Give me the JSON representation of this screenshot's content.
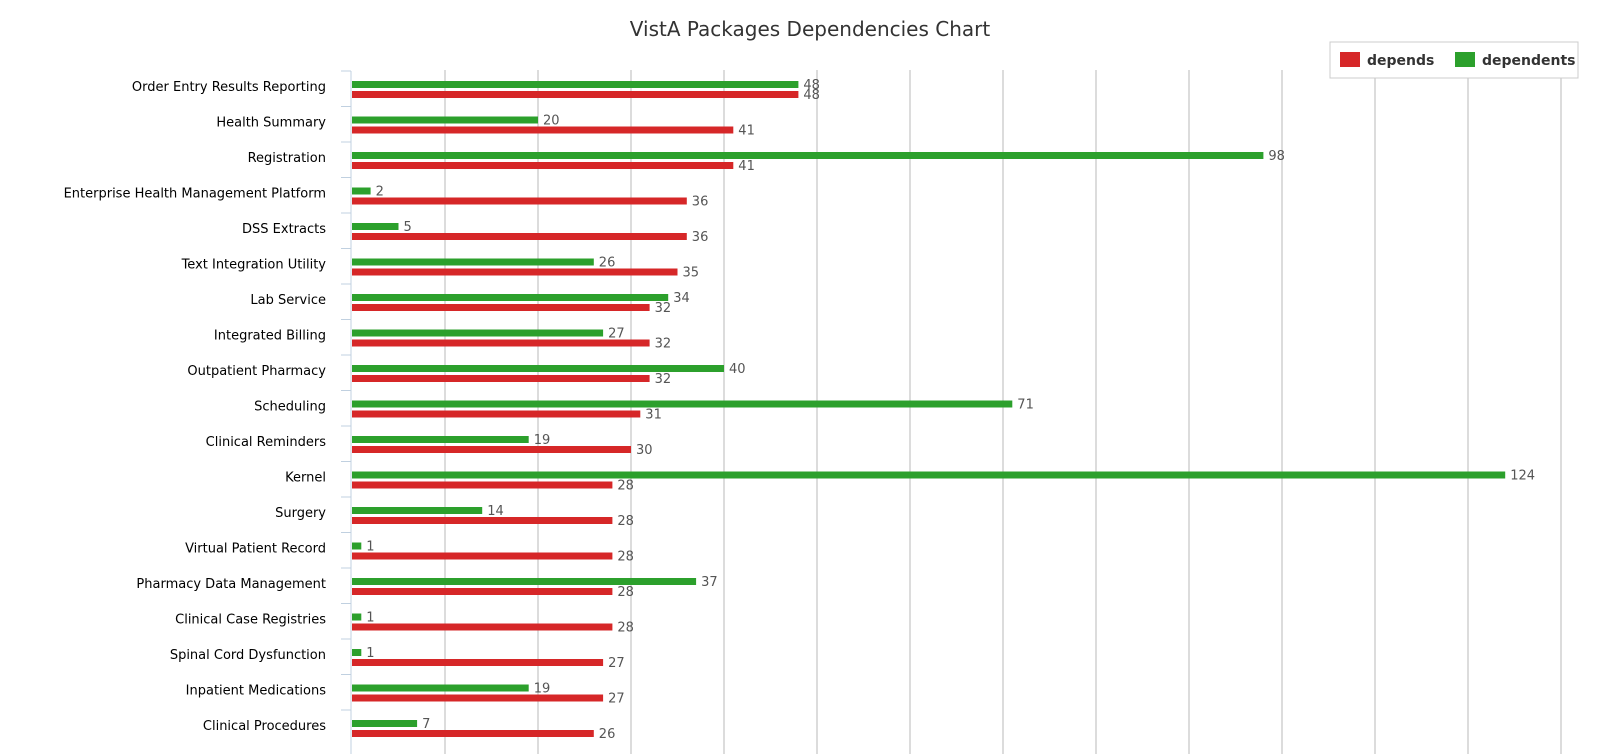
{
  "chart_data": {
    "type": "bar",
    "orientation": "horizontal",
    "title": "VistA Packages Dependencies Chart",
    "xlabel": "",
    "ylabel": "",
    "xlim": [
      0,
      130
    ],
    "grid": true,
    "legend_position": "top-right",
    "categories": [
      "Order Entry Results Reporting",
      "Health Summary",
      "Registration",
      "Enterprise Health Management Platform",
      "DSS Extracts",
      "Text Integration Utility",
      "Lab Service",
      "Integrated Billing",
      "Outpatient Pharmacy",
      "Scheduling",
      "Clinical Reminders",
      "Kernel",
      "Surgery",
      "Virtual Patient Record",
      "Pharmacy Data Management",
      "Clinical Case Registries",
      "Spinal Cord Dysfunction",
      "Inpatient Medications",
      "Clinical Procedures"
    ],
    "series": [
      {
        "name": "depends",
        "color": "#d62728",
        "values": [
          48,
          41,
          41,
          36,
          36,
          35,
          32,
          32,
          32,
          31,
          30,
          28,
          28,
          28,
          28,
          28,
          27,
          27,
          26
        ]
      },
      {
        "name": "dependents",
        "color": "#2ca02c",
        "values": [
          48,
          20,
          98,
          2,
          5,
          26,
          34,
          27,
          40,
          71,
          19,
          124,
          14,
          1,
          37,
          1,
          1,
          19,
          7
        ]
      }
    ]
  }
}
